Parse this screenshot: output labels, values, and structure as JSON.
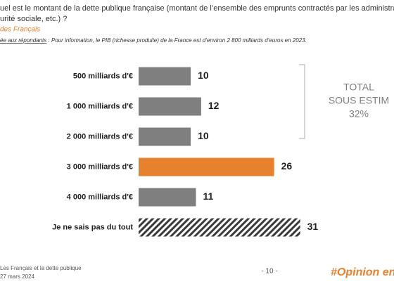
{
  "header": {
    "title_lines": [
      "uel est le montant de la dette publique française (montant de l’ensemble des emprunts contractés par les administrations publ",
      "urité sociale, etc.) ?"
    ],
    "subtitle": "des Français",
    "note_lead": "ée aux répondants",
    "note": " : Pour information, le PIB (richesse produite) de la France est d’environ 2 800 milliards d’euros en 2023."
  },
  "chart_data": {
    "type": "hbar",
    "categories": [
      "500 milliards d'€",
      "1 000 milliards d'€",
      "2 000 milliards d'€",
      "3 000 milliards d'€",
      "4 000 milliards d'€",
      "Je ne sais pas du tout"
    ],
    "values": [
      10,
      12,
      10,
      26,
      11,
      31
    ],
    "colors": [
      "#7f7f7f",
      "#7f7f7f",
      "#7f7f7f",
      "#e8812e",
      "#7f7f7f",
      "#3a3a3a"
    ],
    "hatched": [
      false,
      false,
      false,
      false,
      false,
      true
    ],
    "xlim": [
      0,
      49
    ],
    "annotation": [
      "TOTAL",
      "SOUS ESTIM",
      "32%"
    ]
  },
  "footer": {
    "source": "Les Français et la dette publique",
    "date": "27 mars 2024",
    "page": "- 10 -",
    "brand": "#Opinion en d"
  }
}
